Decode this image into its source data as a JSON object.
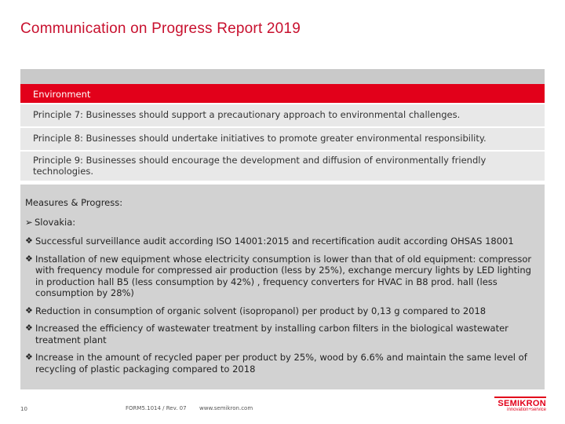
{
  "title": "Communication on Progress Report 2019",
  "table": {
    "header": "Environment",
    "principles": [
      "Principle 7: Businesses should support a precautionary approach to environmental challenges.",
      "Principle 8: Businesses should undertake initiatives to promote greater environmental responsibility.",
      "Principle 9: Businesses should encourage the development and diffusion of environmentally friendly technologies."
    ]
  },
  "measures": {
    "title": "Measures & Progress:",
    "country": "Slovakia:",
    "items": [
      "Successful surveillance audit according ISO 14001:2015 and recertification audit according OHSAS 18001",
      "Installation of new equipment whose electricity consumption is lower than that of old equipment: compressor with frequency module for compressed air production (less by 25%), exchange mercury lights by LED lighting in production hall B5 (less consumption by 42%) , frequency converters for HVAC in B8 prod. hall (less consumption by 28%)",
      "Reduction in consumption of organic solvent (isopropanol) per product by 0,13 g compared to 2018",
      "Increased the efficiency of wastewater treatment by installing carbon filters in the biological wastewater treatment plant",
      "Increase in the amount of recycled paper per product by 25%, wood by 6.6% and maintain the same level of recycling of plastic packaging compared to 2018"
    ]
  },
  "footer": {
    "page": "10",
    "form": "FORM5.1014 / Rev. 07",
    "web": "www.semikron.com"
  },
  "logo": {
    "name": "SEMIKRON",
    "tagline": "innovation+service"
  },
  "colors": {
    "accent": "#e2001a"
  }
}
